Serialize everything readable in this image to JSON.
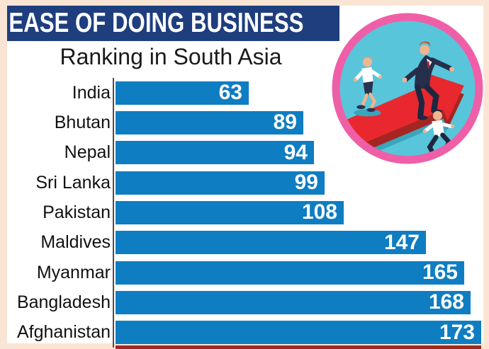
{
  "header": {
    "title": "EASE OF DOING BUSINESS",
    "subtitle": "Ranking in South Asia"
  },
  "colors": {
    "page_border": "#FAE5D4",
    "chart_bg": "#FFFFFF",
    "header_bg": "#1E3E7E",
    "header_text": "#FFFFFF",
    "bar": "#0F7DC2",
    "bar_value_text": "#FFFFFF",
    "label_text": "#111111",
    "axis_line": "#4D4D4D",
    "bottom_strip": "#9C2A21",
    "illustration_ring": "#EF5FA7",
    "illustration_bg": "#58C5DB",
    "illustration_arrow": "#E8282E",
    "illustration_arrow_side": "#A52522",
    "illustration_shadow": "#3AA6BC"
  },
  "chart_data": {
    "type": "bar",
    "orientation": "horizontal",
    "title": "EASE OF DOING BUSINESS",
    "subtitle": "Ranking in South Asia",
    "categories": [
      "India",
      "Bhutan",
      "Nepal",
      "Sri Lanka",
      "Pakistan",
      "Maldives",
      "Myanmar",
      "Bangladesh",
      "Afghanistan"
    ],
    "values": [
      63,
      89,
      94,
      99,
      108,
      147,
      165,
      168,
      173
    ],
    "series": [
      {
        "name": "Ease of Doing Business rank",
        "values": [
          63,
          89,
          94,
          99,
          108,
          147,
          165,
          168,
          173
        ]
      }
    ],
    "xlim": [
      0,
      175
    ],
    "value_labels_position": "inside-end",
    "grid": false,
    "legend": false,
    "bar_color": "#0F7DC2",
    "value_label_color": "#FFFFFF"
  },
  "illustration": {
    "name": "businesspeople-running-on-red-arrow",
    "elements": [
      "pink-circle-ring",
      "cyan-background",
      "red-growth-arrow",
      "running-businesspeople"
    ]
  }
}
